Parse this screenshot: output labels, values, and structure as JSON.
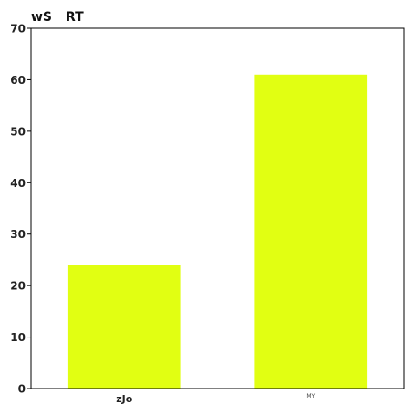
{
  "chart_data": {
    "type": "bar",
    "title_parts": [
      "wS",
      "RT"
    ],
    "categories": [
      "zJo",
      "MY"
    ],
    "values": [
      24,
      61
    ],
    "xlabel": "",
    "ylabel": "",
    "ylim": [
      0,
      70
    ],
    "yticks": [
      0,
      10,
      20,
      30,
      40,
      50,
      60,
      70
    ],
    "bar_color": "#e1ff12",
    "axis_color": "#000000",
    "grid": false,
    "legend": "none"
  }
}
